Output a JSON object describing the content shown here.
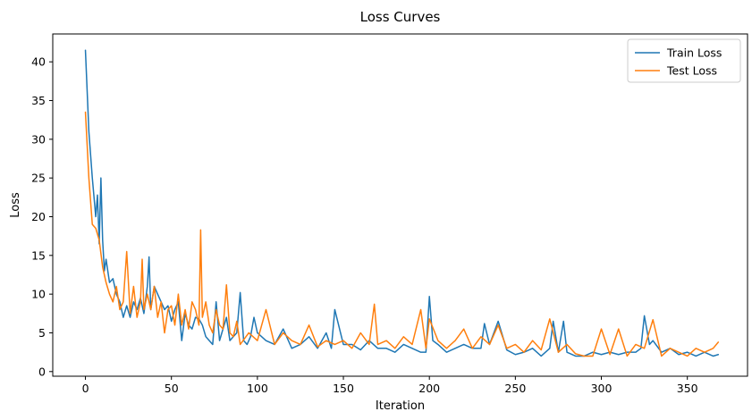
{
  "chart_data": {
    "type": "line",
    "title": "Loss Curves",
    "xlabel": "Iteration",
    "ylabel": "Loss",
    "xlim": [
      -19,
      385
    ],
    "ylim": [
      -0.6,
      43.6
    ],
    "xticks": [
      0,
      50,
      100,
      150,
      200,
      250,
      300,
      350
    ],
    "yticks": [
      0,
      5,
      10,
      15,
      20,
      25,
      30,
      35,
      40
    ],
    "grid": false,
    "legend_position": "top-right",
    "series": [
      {
        "name": "Train Loss",
        "color": "#1f77b4",
        "x": [
          0,
          2,
          4,
          6,
          7,
          8,
          9,
          10,
          11,
          12,
          14,
          16,
          18,
          20,
          22,
          24,
          26,
          28,
          30,
          32,
          34,
          36,
          37,
          38,
          40,
          42,
          44,
          46,
          48,
          50,
          52,
          54,
          56,
          58,
          60,
          62,
          64,
          66,
          68,
          70,
          72,
          74,
          76,
          78,
          80,
          82,
          84,
          86,
          88,
          90,
          92,
          94,
          96,
          98,
          100,
          105,
          110,
          115,
          120,
          125,
          130,
          135,
          140,
          143,
          145,
          150,
          155,
          160,
          165,
          170,
          175,
          180,
          185,
          190,
          195,
          198,
          200,
          202,
          205,
          210,
          215,
          220,
          225,
          230,
          232,
          235,
          240,
          245,
          250,
          255,
          260,
          265,
          270,
          272,
          275,
          278,
          280,
          285,
          290,
          295,
          300,
          305,
          310,
          315,
          320,
          323,
          325,
          328,
          330,
          335,
          340,
          345,
          350,
          355,
          360,
          365,
          368
        ],
        "y": [
          41.5,
          31,
          25,
          20,
          22.8,
          16.5,
          25,
          17,
          13,
          14.5,
          11.5,
          12,
          10,
          9,
          7,
          8.5,
          7,
          9,
          8,
          9.5,
          7.5,
          11,
          14.8,
          8,
          11,
          10,
          9,
          8,
          8.5,
          6.5,
          8,
          9,
          4,
          7.5,
          6,
          5.5,
          7,
          6.8,
          6,
          4.5,
          4,
          3.5,
          9,
          4,
          5.5,
          7,
          4,
          4.5,
          5,
          10.2,
          4,
          3.5,
          4.5,
          7,
          5,
          4,
          3.5,
          5.5,
          3,
          3.5,
          4.5,
          3,
          5,
          3,
          8,
          3.5,
          3.5,
          2.8,
          4,
          3,
          3,
          2.5,
          3.5,
          3,
          2.5,
          2.5,
          9.7,
          4,
          3.5,
          2.5,
          3,
          3.5,
          3,
          3,
          6.2,
          3.5,
          6.5,
          2.8,
          2.2,
          2.5,
          3,
          2,
          3,
          6.5,
          2.5,
          6.5,
          2.5,
          2,
          2,
          2.5,
          2.2,
          2.5,
          2.2,
          2.5,
          2.5,
          3,
          7.2,
          3.5,
          4,
          2.5,
          3,
          2.2,
          2.5,
          2,
          2.5,
          2,
          2.2
        ]
      },
      {
        "name": "Test Loss",
        "color": "#ff7f0e",
        "x": [
          0,
          2,
          4,
          6,
          8,
          10,
          12,
          14,
          16,
          18,
          20,
          22,
          24,
          26,
          28,
          30,
          32,
          33,
          34,
          36,
          38,
          40,
          42,
          44,
          46,
          48,
          50,
          52,
          54,
          56,
          58,
          60,
          62,
          64,
          66,
          67,
          68,
          70,
          72,
          74,
          76,
          78,
          80,
          82,
          84,
          86,
          88,
          90,
          95,
          100,
          105,
          110,
          115,
          120,
          125,
          130,
          135,
          140,
          145,
          150,
          155,
          160,
          165,
          168,
          170,
          175,
          180,
          185,
          190,
          195,
          198,
          200,
          205,
          210,
          215,
          220,
          225,
          230,
          235,
          240,
          245,
          250,
          255,
          260,
          265,
          270,
          275,
          280,
          285,
          290,
          295,
          300,
          305,
          310,
          315,
          320,
          325,
          330,
          335,
          340,
          345,
          350,
          355,
          360,
          365,
          368
        ],
        "y": [
          33.5,
          25,
          19,
          18.5,
          17,
          13.5,
          11.5,
          10,
          9,
          11,
          8,
          9,
          15.5,
          7.5,
          11,
          7,
          9,
          14.5,
          8,
          10,
          8,
          11,
          7,
          9,
          5,
          8,
          8.5,
          6,
          10,
          6,
          8,
          5.5,
          9,
          8,
          6,
          18.3,
          7,
          9,
          6,
          5,
          8,
          6,
          5.5,
          11.2,
          5,
          4.5,
          6.5,
          3.5,
          5,
          4,
          8,
          3.5,
          5,
          4,
          3.5,
          6,
          3.2,
          4,
          3.5,
          4,
          3,
          5,
          3.5,
          8.7,
          3.5,
          4,
          3,
          4.5,
          3.5,
          8,
          3,
          6.8,
          4,
          3,
          4,
          5.5,
          3,
          4.5,
          3.5,
          6,
          3,
          3.5,
          2.5,
          4,
          2.8,
          6.8,
          2.5,
          3.5,
          2.3,
          2,
          2,
          5.5,
          2.2,
          5.5,
          2,
          3.5,
          3,
          6.7,
          2,
          3,
          2.5,
          2,
          3,
          2.5,
          3,
          3.8
        ]
      }
    ]
  }
}
